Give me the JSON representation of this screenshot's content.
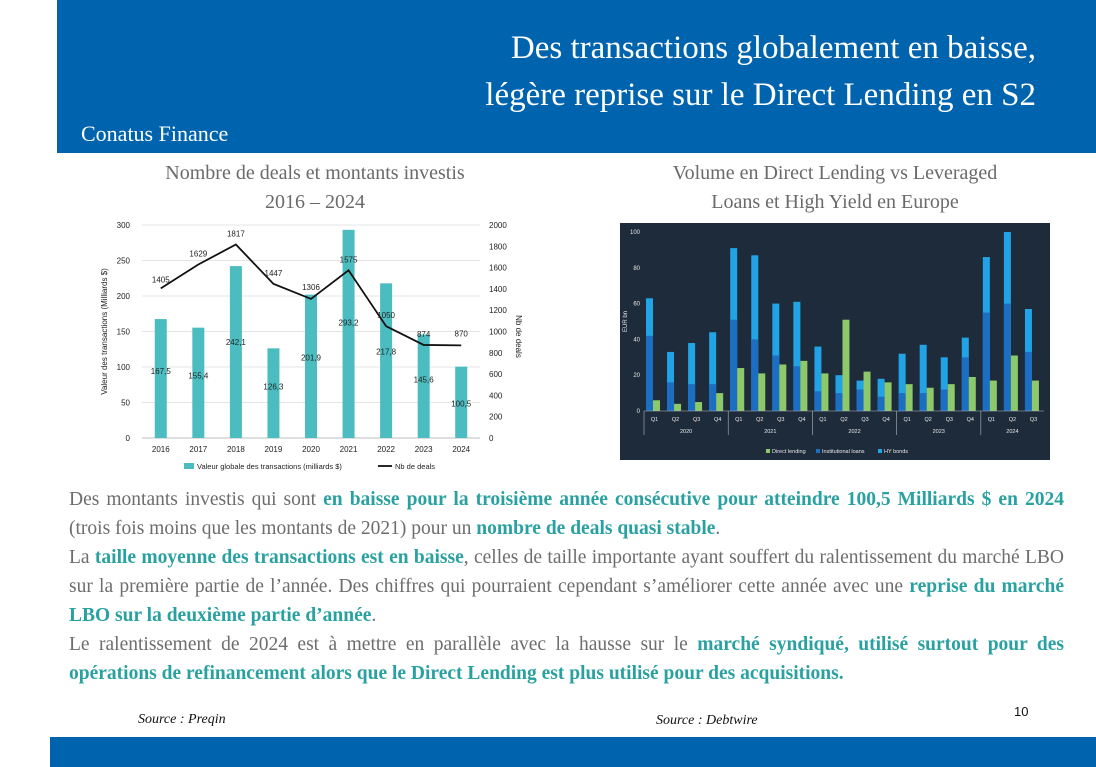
{
  "header": {
    "title_line1": "Des transactions globalement en baisse,",
    "title_line2": "légère reprise sur le Direct Lending en S2",
    "brand": "Conatus Finance"
  },
  "chart1_title": [
    "Nombre de deals et montants investis",
    "2016 – 2024"
  ],
  "chart2_title": [
    "Volume en Direct Lending vs Leveraged",
    "Loans et High Yield en Europe"
  ],
  "chart_data": [
    {
      "type": "bar",
      "categories": [
        "2016",
        "2017",
        "2018",
        "2019",
        "2020",
        "2021",
        "2022",
        "2023",
        "2024"
      ],
      "ylabel": "Valeur des transactions (Milliards $)",
      "y2label": "Nb de deals",
      "ylim": [
        0,
        300
      ],
      "yticks": [
        0,
        50,
        100,
        150,
        200,
        250,
        300
      ],
      "y2lim": [
        0,
        2000
      ],
      "y2ticks": [
        0,
        200,
        400,
        600,
        800,
        1000,
        1200,
        1400,
        1600,
        1800,
        2000
      ],
      "series": [
        {
          "name": "Valeur globale des transactions (milliards $)",
          "kind": "bar",
          "values": [
            167.5,
            155.4,
            242.1,
            126.3,
            201.9,
            293.2,
            217.8,
            145.6,
            100.5
          ],
          "labels": [
            "167,5",
            "155,4",
            "242,1",
            "126,3",
            "201,9",
            "293,2",
            "217,8",
            "145,6",
            "100,5"
          ],
          "color": "#4bbcc0"
        },
        {
          "name": "Nb de deals",
          "kind": "line",
          "values": [
            1405,
            1629,
            1817,
            1447,
            1306,
            1575,
            1050,
            874,
            870
          ],
          "labels": [
            "1405",
            "1629",
            "1817",
            "1447",
            "1306",
            "1575",
            "1050",
            "874",
            "870"
          ],
          "color": "#111111"
        }
      ],
      "legend": "bottom"
    },
    {
      "type": "bar",
      "stacked_partial": true,
      "ylabel": "EUR bn",
      "ylim": [
        0,
        100
      ],
      "yticks": [
        0,
        20,
        40,
        60,
        80,
        100
      ],
      "quarters": [
        "Q1",
        "Q2",
        "Q3",
        "Q4",
        "Q1",
        "Q2",
        "Q3",
        "Q4",
        "Q1",
        "Q2",
        "Q3",
        "Q4",
        "Q1",
        "Q2",
        "Q3",
        "Q4",
        "Q1",
        "Q2",
        "Q3"
      ],
      "years": [
        "2020",
        "2021",
        "2022",
        "2023",
        "2024"
      ],
      "year_group_sizes": [
        4,
        4,
        4,
        4,
        3
      ],
      "series": [
        {
          "name": "Direct lending",
          "values": [
            6,
            4,
            5,
            10,
            24,
            21,
            26,
            28,
            21,
            51,
            22,
            16,
            15,
            13,
            15,
            19,
            17,
            31,
            17
          ],
          "color": "#8dc86a"
        },
        {
          "name": "Institutional loans",
          "values": [
            42,
            16,
            15,
            15,
            51,
            40,
            31,
            25,
            11,
            10,
            12,
            8,
            10,
            10,
            12,
            30,
            55,
            60,
            33
          ],
          "color": "#1b6ec2"
        },
        {
          "name": "HY bonds",
          "values": [
            63,
            33,
            38,
            44,
            91,
            87,
            60,
            61,
            36,
            20,
            17,
            18,
            32,
            37,
            30,
            41,
            86,
            100,
            57
          ],
          "color": "#21a3e6"
        }
      ],
      "legend": "bottom",
      "background": "#1e2b3a"
    }
  ],
  "body": {
    "p1_a": "Des montants investis qui sont ",
    "p1_b": "en baisse pour la troisième année consécutive pour atteindre 100,5 Milliards $ en 2024",
    "p1_c": " (trois fois moins que les montants de 2021) pour un ",
    "p1_d": "nombre de deals quasi stable",
    "p1_e": ".",
    "p2_a": "La ",
    "p2_b": "taille moyenne des transactions est en baisse",
    "p2_c": ", celles de taille importante ayant souffert du ralentissement du marché LBO sur la première partie de l’année. Des chiffres qui pourraient cependant s’améliorer cette année avec une ",
    "p2_d": "reprise du marché LBO sur la deuxième partie d’année",
    "p2_e": ".",
    "p3_a": "Le ralentissement de 2024 est à mettre en parallèle avec la hausse sur le ",
    "p3_b": "marché syndiqué, utilisé surtout pour des opérations de refinancement alors que le Direct Lending est plus utilisé pour des acquisitions."
  },
  "sources": {
    "s1": "Source : Preqin",
    "s2": "Source : Debtwire"
  },
  "page_number": "10",
  "colors": {
    "brand_blue": "#0063ae",
    "highlight": "#2aa1a1"
  }
}
